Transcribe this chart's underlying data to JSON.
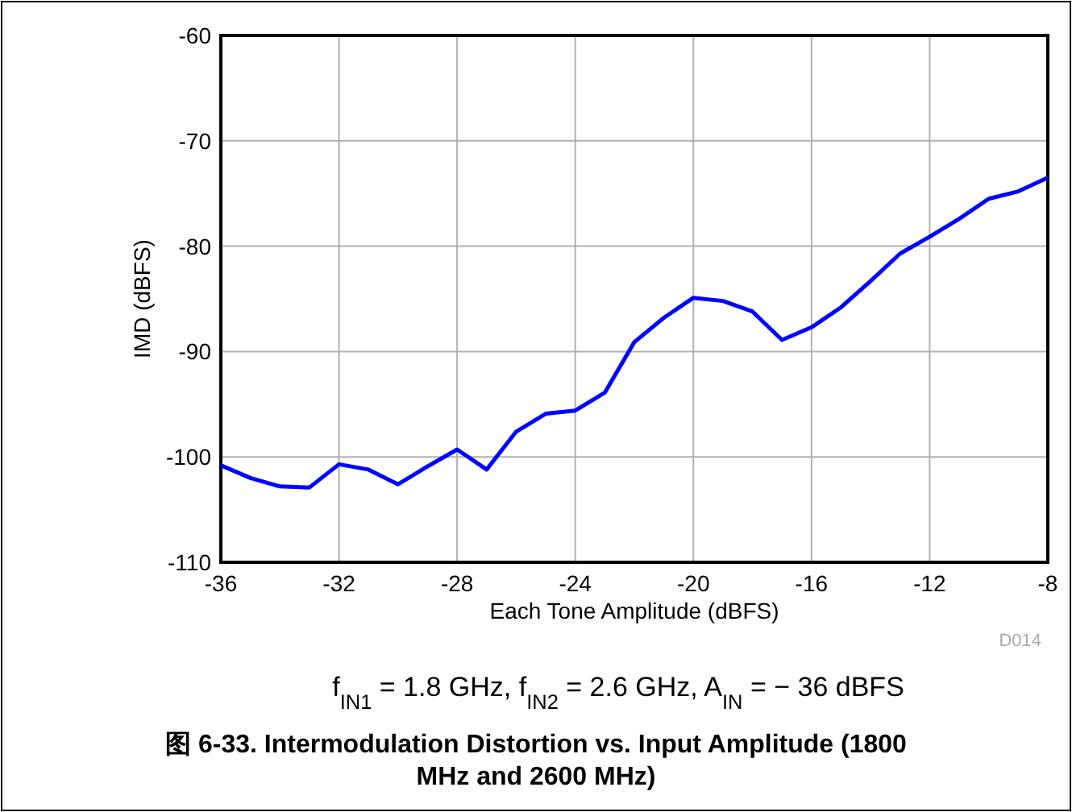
{
  "chart_data": {
    "type": "line",
    "title": "图 6-33. Intermodulation Distortion vs. Input Amplitude (1800 MHz and 2600 MHz)",
    "xlabel": "Each Tone Amplitude (dBFS)",
    "ylabel": "IMD (dBFS)",
    "annotations": [
      "f$_{IN1}$ = 1.8 GHz, f$_{IN2}$ = 2.6 GHz, A$_{IN}$ = − 36 dBFS",
      "D014"
    ],
    "x": [
      -36,
      -35,
      -34,
      -33,
      -32,
      -31,
      -30,
      -29,
      -28,
      -27,
      -26,
      -25,
      -24,
      -23,
      -22,
      -21,
      -20,
      -19,
      -18,
      -17,
      -16,
      -15,
      -14,
      -13,
      -12,
      -11,
      -10,
      -9,
      -8
    ],
    "series": [
      {
        "color": "#0000ff",
        "values": [
          -100.8,
          -102,
          -102.8,
          -102.9,
          -100.7,
          -101.2,
          -102.6,
          -100.9,
          -99.3,
          -101.2,
          -97.6,
          -95.9,
          -95.6,
          -93.9,
          -89.1,
          -86.8,
          -84.9,
          -85.2,
          -86.2,
          -88.9,
          -87.7,
          -85.8,
          -83.3,
          -80.7,
          -79.1,
          -77.4,
          -75.5,
          -74.8,
          -73.5
        ]
      }
    ],
    "xlim": [
      -36,
      -8
    ],
    "xticks": [
      -36,
      -32,
      -28,
      -24,
      -20,
      -16,
      -12,
      -8
    ],
    "ylim": [
      -110,
      -60
    ],
    "yticks": [
      -110,
      -100,
      -90,
      -80,
      -70,
      -60
    ],
    "grid": true,
    "marker": "none",
    "line_style": "solid"
  }
}
